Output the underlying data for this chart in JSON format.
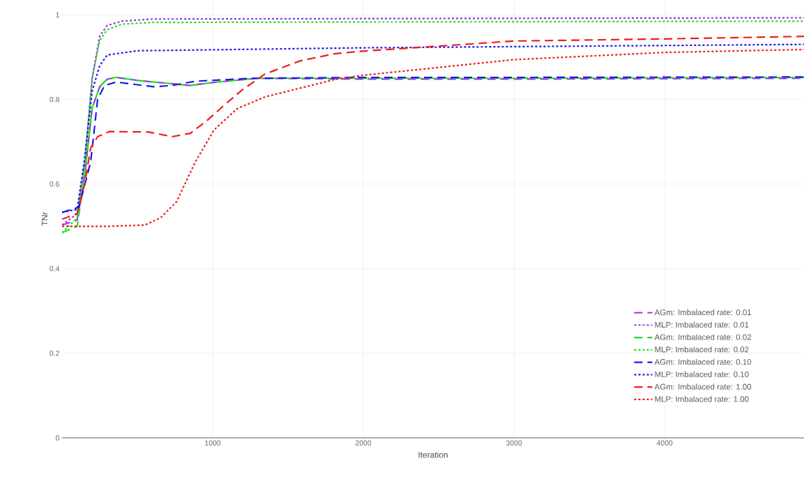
{
  "chart_data": {
    "type": "line",
    "xlabel": "Iteration",
    "ylabel": "TNr",
    "xlim": [
      0,
      4925
    ],
    "ylim": [
      0,
      1.035
    ],
    "xticks": [
      1000,
      2000,
      3000,
      4000
    ],
    "yticks": [
      0,
      0.2,
      0.4,
      0.6,
      0.8,
      1
    ],
    "grid": true,
    "legend": "bottom right",
    "marker": "none",
    "series": [
      {
        "name": "AGm: Imbalaced rate: 0.01",
        "color": "#9b30e8",
        "line_style": "dashed",
        "x": [
          0,
          100,
          150,
          200,
          250,
          300,
          360,
          500,
          700,
          850,
          1000,
          1300,
          2000,
          3000,
          4925
        ],
        "values": [
          0.503,
          0.515,
          0.62,
          0.78,
          0.83,
          0.848,
          0.852,
          0.845,
          0.838,
          0.833,
          0.84,
          0.85,
          0.848,
          0.848,
          0.85
        ]
      },
      {
        "name": "MLP: Imbalaced rate: 0.01",
        "color": "#9b30e8",
        "line_style": "dotted",
        "x": [
          0,
          100,
          150,
          200,
          250,
          300,
          400,
          600,
          4925
        ],
        "values": [
          0.503,
          0.53,
          0.65,
          0.85,
          0.95,
          0.975,
          0.985,
          0.99,
          0.993
        ]
      },
      {
        "name": "AGm: Imbalaced rate: 0.02",
        "color": "#22dd22",
        "line_style": "dashed",
        "x": [
          0,
          100,
          150,
          200,
          250,
          300,
          360,
          500,
          700,
          850,
          1000,
          1300,
          2000,
          3000,
          4925
        ],
        "values": [
          0.485,
          0.5,
          0.62,
          0.78,
          0.83,
          0.848,
          0.852,
          0.845,
          0.838,
          0.833,
          0.84,
          0.85,
          0.85,
          0.85,
          0.852
        ]
      },
      {
        "name": "MLP: Imbalaced rate: 0.02",
        "color": "#22dd22",
        "line_style": "dotted",
        "x": [
          0,
          100,
          150,
          200,
          250,
          300,
          400,
          600,
          4925
        ],
        "values": [
          0.485,
          0.52,
          0.65,
          0.85,
          0.94,
          0.965,
          0.978,
          0.982,
          0.985
        ]
      },
      {
        "name": "AGm: Imbalaced rate: 0.10",
        "color": "#1a1ae6",
        "line_style": "dashed",
        "x": [
          0,
          112,
          190,
          236,
          282,
          360,
          606,
          731,
          884,
          1270,
          2000,
          3000,
          4925
        ],
        "values": [
          0.533,
          0.545,
          0.652,
          0.8,
          0.833,
          0.841,
          0.83,
          0.833,
          0.843,
          0.85,
          0.852,
          0.852,
          0.853
        ]
      },
      {
        "name": "MLP: Imbalaced rate: 0.10",
        "color": "#1a1ae6",
        "line_style": "dotted",
        "x": [
          0,
          100,
          150,
          200,
          250,
          300,
          500,
          2000,
          4925
        ],
        "values": [
          0.533,
          0.54,
          0.66,
          0.82,
          0.88,
          0.905,
          0.915,
          0.922,
          0.93
        ]
      },
      {
        "name": "AGm: Imbalaced rate:  1.00",
        "color": "#ee1c1c",
        "line_style": "dashed",
        "x": [
          0,
          100,
          150,
          190,
          236,
          314,
          575,
          731,
          852,
          962,
          1069,
          1194,
          1347,
          1579,
          1810,
          1995,
          3000,
          4000,
          4925
        ],
        "values": [
          0.517,
          0.53,
          0.6,
          0.685,
          0.712,
          0.724,
          0.723,
          0.712,
          0.72,
          0.75,
          0.784,
          0.822,
          0.86,
          0.891,
          0.908,
          0.914,
          0.938,
          0.943,
          0.949
        ]
      },
      {
        "name": "MLP: Imbalaced rate:  1.00",
        "color": "#ee1c1c",
        "line_style": "dotted",
        "x": [
          0,
          300,
          550,
          653,
          760,
          884,
          1009,
          1162,
          1347,
          1810,
          1995,
          3000,
          3995,
          4925
        ],
        "values": [
          0.5,
          0.5,
          0.503,
          0.52,
          0.558,
          0.652,
          0.728,
          0.778,
          0.806,
          0.847,
          0.857,
          0.894,
          0.911,
          0.918
        ]
      }
    ]
  }
}
